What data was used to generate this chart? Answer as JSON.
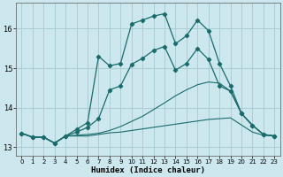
{
  "xlabel": "Humidex (Indice chaleur)",
  "bg_color": "#cce8ee",
  "grid_color": "#aacdd4",
  "line_color": "#1a6b6b",
  "xlim": [
    -0.5,
    23.5
  ],
  "ylim": [
    12.78,
    16.65
  ],
  "xticks": [
    0,
    1,
    2,
    3,
    4,
    5,
    6,
    7,
    8,
    9,
    10,
    11,
    12,
    13,
    14,
    15,
    16,
    17,
    18,
    19,
    20,
    21,
    22,
    23
  ],
  "yticks": [
    13,
    14,
    15,
    16
  ],
  "line1_x": [
    0,
    1,
    2,
    3,
    4,
    5,
    6,
    7,
    8,
    9,
    10,
    11,
    12,
    13,
    14,
    15,
    16,
    17,
    18,
    19,
    20,
    21,
    22,
    23
  ],
  "line1_y": [
    13.35,
    13.25,
    13.25,
    13.1,
    13.28,
    13.28,
    13.28,
    13.32,
    13.36,
    13.38,
    13.42,
    13.46,
    13.5,
    13.54,
    13.58,
    13.62,
    13.66,
    13.7,
    13.72,
    13.74,
    13.56,
    13.38,
    13.3,
    13.28
  ],
  "line2_x": [
    0,
    1,
    2,
    3,
    4,
    5,
    6,
    7,
    8,
    9,
    10,
    11,
    12,
    13,
    14,
    15,
    16,
    17,
    18,
    19,
    20,
    21,
    22,
    23
  ],
  "line2_y": [
    13.35,
    13.25,
    13.25,
    13.1,
    13.28,
    13.3,
    13.32,
    13.35,
    13.42,
    13.52,
    13.65,
    13.78,
    13.95,
    14.12,
    14.3,
    14.45,
    14.58,
    14.65,
    14.62,
    14.42,
    13.85,
    13.55,
    13.32,
    13.28
  ],
  "line3_x": [
    0,
    1,
    2,
    3,
    4,
    5,
    6,
    7,
    8,
    9,
    10,
    11,
    12,
    13,
    14,
    15,
    16,
    17,
    18,
    19,
    20,
    21,
    22,
    23
  ],
  "line3_y": [
    13.35,
    13.25,
    13.25,
    13.1,
    13.28,
    13.38,
    13.5,
    13.72,
    14.45,
    14.55,
    15.1,
    15.25,
    15.45,
    15.55,
    14.95,
    15.12,
    15.5,
    15.22,
    14.55,
    14.42,
    13.85,
    13.55,
    13.32,
    13.28
  ],
  "line4_x": [
    0,
    1,
    2,
    3,
    4,
    5,
    6,
    7,
    8,
    9,
    10,
    11,
    12,
    13,
    14,
    15,
    16,
    17,
    18,
    19,
    20,
    21,
    22,
    23
  ],
  "line4_y": [
    13.35,
    13.25,
    13.25,
    13.1,
    13.28,
    13.45,
    13.62,
    15.3,
    15.06,
    15.12,
    16.12,
    16.22,
    16.32,
    16.38,
    15.62,
    15.82,
    16.22,
    15.95,
    15.12,
    14.55,
    13.85,
    13.55,
    13.32,
    13.28
  ],
  "line1_style": "-",
  "line2_style": "-",
  "line3_style": "-",
  "line4_style": "-",
  "marker": "D",
  "markersize": 2.2
}
